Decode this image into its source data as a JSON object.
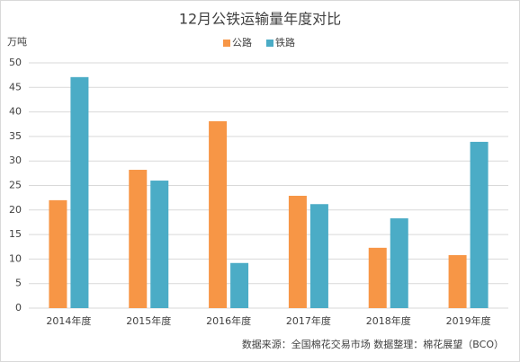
{
  "chart_data": {
    "type": "bar",
    "title": "12月公铁运输量年度对比",
    "y_label": "万吨",
    "categories": [
      "2014年度",
      "2015年度",
      "2016年度",
      "2017年度",
      "2018年度",
      "2019年度"
    ],
    "series": [
      {
        "name": "公路",
        "color": "#f79646",
        "values": [
          22,
          28.2,
          38.1,
          22.9,
          12.3,
          10.8
        ]
      },
      {
        "name": "铁路",
        "color": "#4bacc6",
        "values": [
          47.1,
          26,
          9.2,
          21.2,
          18.3,
          33.9
        ]
      }
    ],
    "ylim": [
      0,
      50
    ],
    "yticks": [
      0,
      5,
      10,
      15,
      20,
      25,
      30,
      35,
      40,
      45,
      50
    ],
    "grid": true,
    "legend": "top",
    "source": "数据来源：全国棉花交易市场 数据整理：棉花展望（BCO）"
  }
}
